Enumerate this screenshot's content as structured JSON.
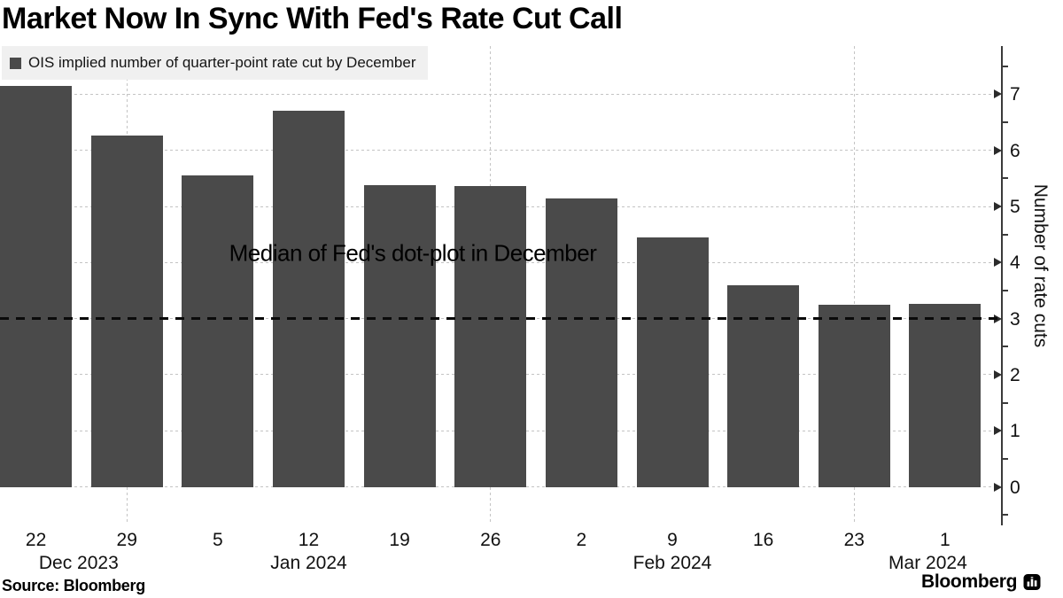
{
  "title": "Market Now In Sync With Fed's Rate Cut Call",
  "legend": {
    "label": "OIS implied number of quarter-point rate cut by December"
  },
  "annotation": "Median of Fed's dot-plot in December",
  "footer": {
    "source": "Source: Bloomberg",
    "brand": "Bloomberg"
  },
  "colors": {
    "bar": "#4a4a4a",
    "grid": "#c4c4c4",
    "axis": "#3a3a3a",
    "reference_line": "#0a0a0a",
    "legend_background": "#f0f0f0"
  },
  "chart_data": {
    "type": "bar",
    "title": "Market Now In Sync With Fed's Rate Cut Call",
    "series_name": "OIS implied number of quarter-point rate cut by December",
    "categories": [
      "Dec 22 2023",
      "Dec 29 2023",
      "Jan 5 2024",
      "Jan 12 2024",
      "Jan 19 2024",
      "Jan 26 2024",
      "Feb 2 2024",
      "Feb 9 2024",
      "Feb 16 2024",
      "Feb 23 2024",
      "Mar 1 2024"
    ],
    "x_day_labels": [
      "22",
      "29",
      "5",
      "12",
      "19",
      "26",
      "2",
      "9",
      "16",
      "23",
      "1"
    ],
    "x_month_labels": [
      {
        "label": "Dec 2023",
        "at": 0.47
      },
      {
        "label": "Jan 2024",
        "at": 3.0
      },
      {
        "label": "Feb 2024",
        "at": 7.0
      },
      {
        "label": "Mar 2024",
        "at": 9.81
      }
    ],
    "values": [
      7.15,
      6.27,
      5.55,
      6.7,
      5.38,
      5.36,
      5.14,
      4.44,
      3.59,
      3.25,
      3.26
    ],
    "xlabel": "",
    "ylabel": "Number of rate cuts",
    "ylim": [
      -0.5,
      7.75
    ],
    "yticks": [
      0,
      1,
      2,
      3,
      4,
      5,
      6,
      7
    ],
    "y_minor_step": 0.5,
    "grid": true,
    "y_axis_position": "right",
    "legend_position": "top-left",
    "reference_line": {
      "value": 3,
      "label": "Median of Fed's dot-plot in December",
      "style": "dashed"
    },
    "vertical_gridlines_at_categories": [
      1,
      5,
      9
    ],
    "source": "Bloomberg"
  }
}
